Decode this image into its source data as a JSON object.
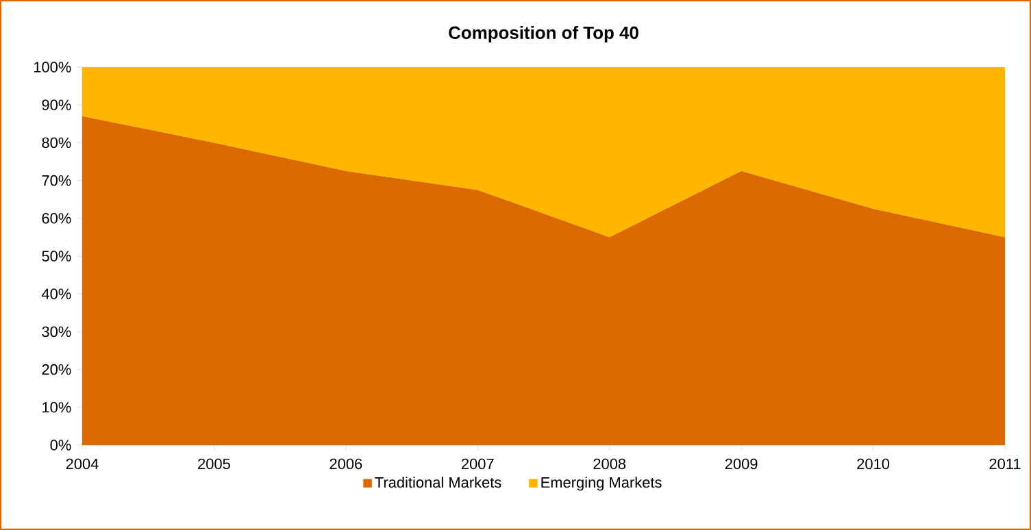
{
  "chart_data": {
    "type": "area",
    "title": "Composition of Top 40",
    "stacked": true,
    "x": [
      2004,
      2005,
      2006,
      2007,
      2008,
      2009,
      2010,
      2011
    ],
    "series": [
      {
        "name": "Traditional Markets",
        "color": "#dc6900",
        "values": [
          87,
          80,
          72.5,
          67.5,
          55,
          72.5,
          62.5,
          55
        ]
      },
      {
        "name": "Emerging Markets",
        "color": "#ffb600",
        "values": [
          13,
          20,
          27.5,
          32.5,
          45,
          27.5,
          37.5,
          45
        ]
      }
    ],
    "xlim": [
      2004,
      2011
    ],
    "xticks": [
      2004,
      2005,
      2006,
      2007,
      2008,
      2009,
      2010,
      2011
    ],
    "ylim": [
      0,
      100
    ],
    "yticks": [
      {
        "value": 0,
        "label": "0%"
      },
      {
        "value": 10,
        "label": "10%"
      },
      {
        "value": 20,
        "label": "20%"
      },
      {
        "value": 30,
        "label": "30%"
      },
      {
        "value": 40,
        "label": "40%"
      },
      {
        "value": 50,
        "label": "50%"
      },
      {
        "value": 60,
        "label": "60%"
      },
      {
        "value": 70,
        "label": "70%"
      },
      {
        "value": 80,
        "label": "80%"
      },
      {
        "value": 90,
        "label": "90%"
      },
      {
        "value": 100,
        "label": "100%"
      }
    ],
    "grid": false,
    "legend": "bottom"
  }
}
